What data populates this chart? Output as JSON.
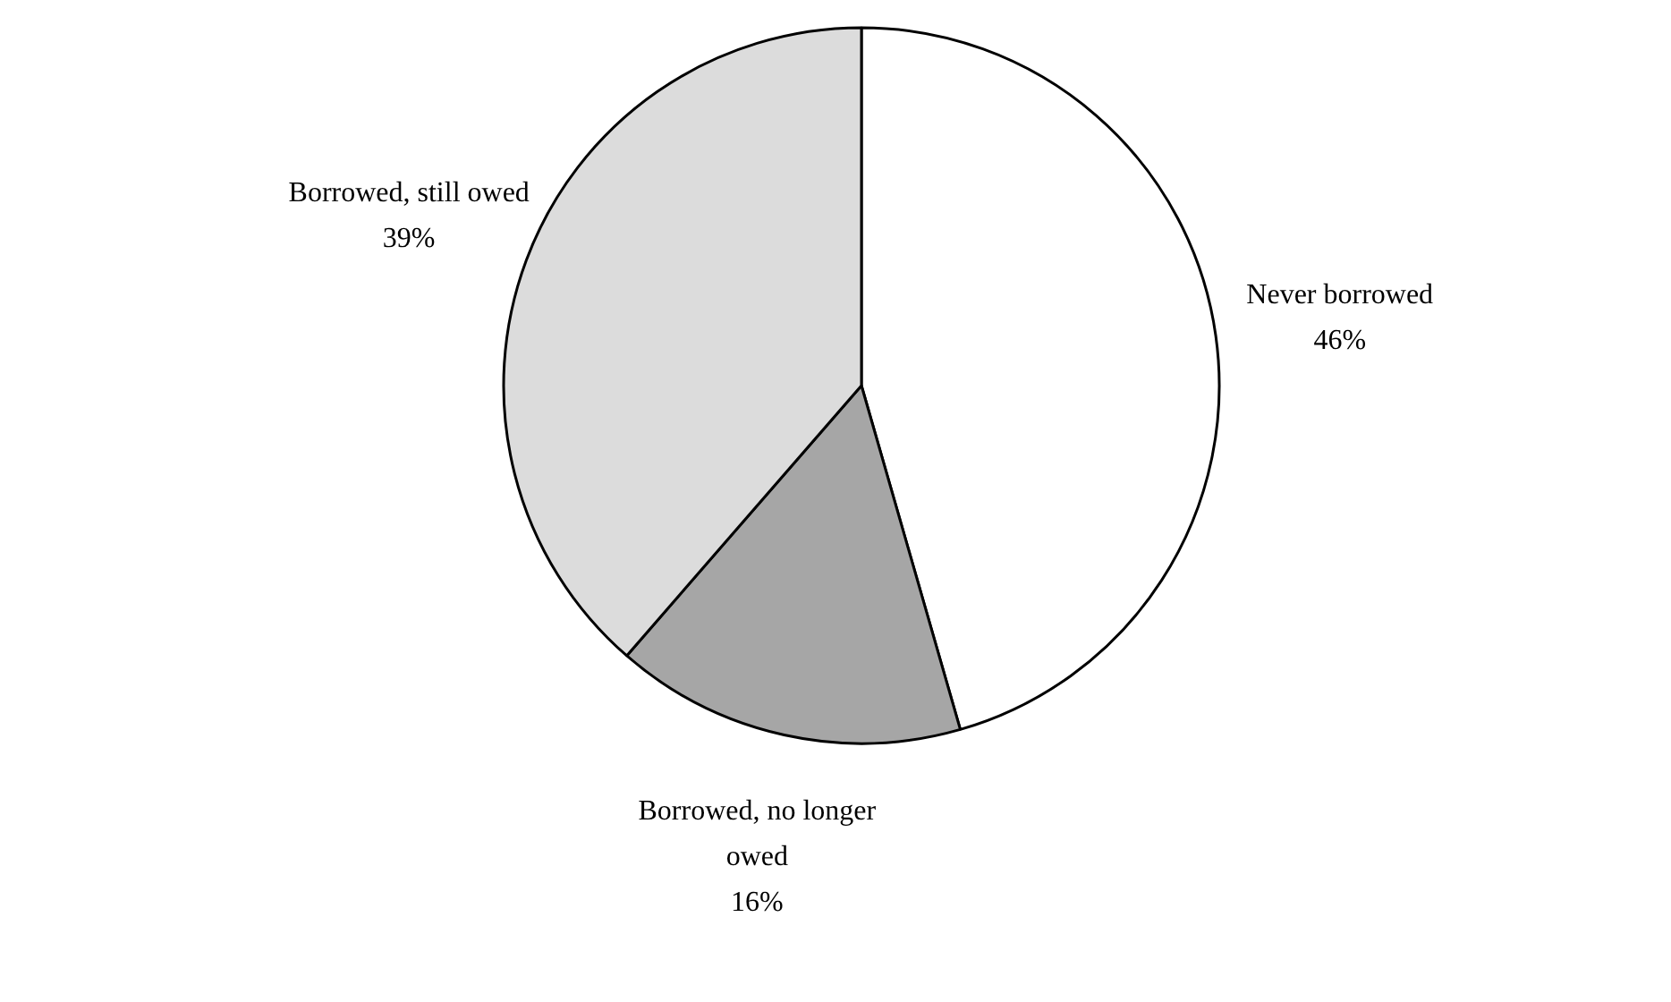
{
  "chart_data": {
    "type": "pie",
    "categories": [
      "Never borrowed",
      "Borrowed, no longer owed",
      "Borrowed, still owed"
    ],
    "values": [
      46,
      16,
      39
    ],
    "value_labels": [
      "46%",
      "16%",
      "39%"
    ],
    "colors": [
      "#ffffff",
      "#a6a6a6",
      "#dcdcdc"
    ]
  }
}
